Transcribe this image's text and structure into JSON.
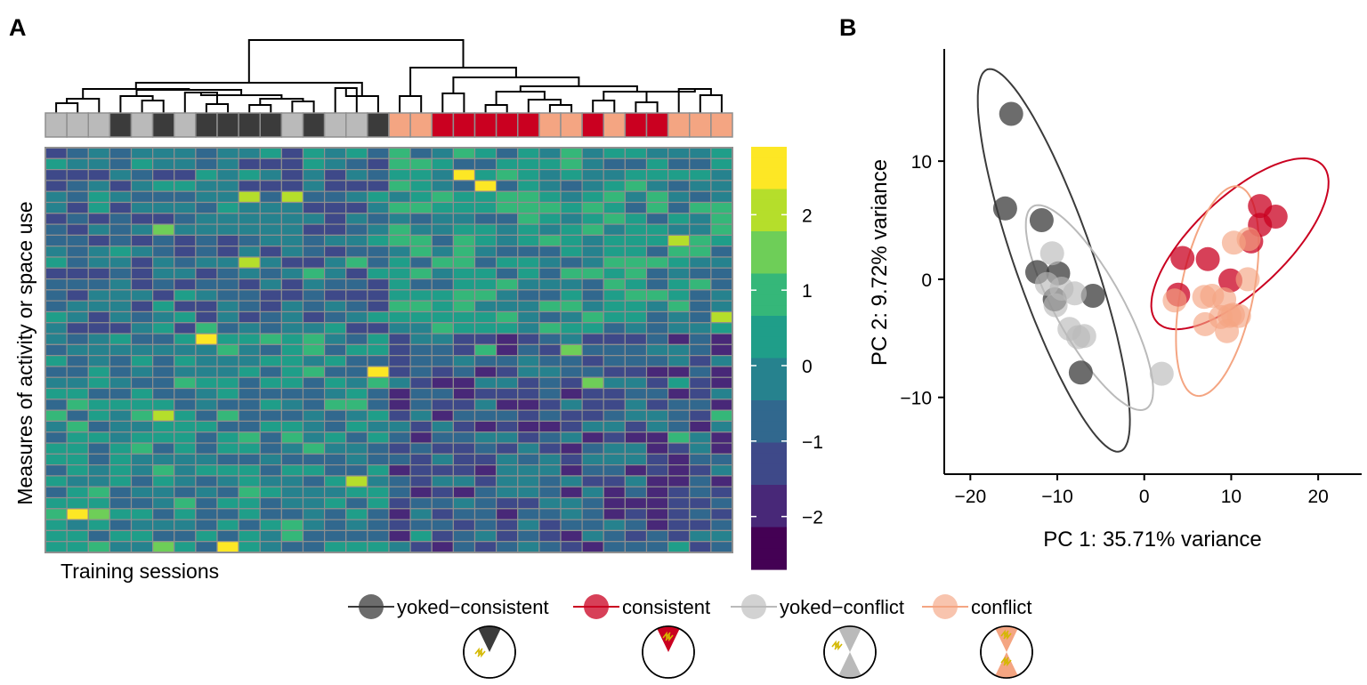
{
  "panels": {
    "a": "A",
    "b": "B"
  },
  "colors": {
    "yoked-consistent": "#3b3b3b",
    "consistent": "#ca0020",
    "yoked-conflict": "#bababa",
    "conflict": "#f4a582",
    "grid_stroke": "#8f8f8f",
    "viridis": [
      "#440154",
      "#482878",
      "#3e4989",
      "#31688e",
      "#26828e",
      "#1f9e89",
      "#35b779",
      "#6ece58",
      "#b5de2b",
      "#fde725"
    ]
  },
  "chart_data": [
    {
      "type": "heatmap",
      "panel": "A",
      "ylabel": "Measures of activity or space use",
      "xlabel": "Training sessions",
      "colorbar_ticks": [
        2,
        1,
        0,
        -1,
        -2
      ],
      "colorbar_tick_labels": [
        "2",
        "1",
        "0",
        "−1",
        "−2"
      ],
      "colorbar_range": [
        -2.7,
        2.9
      ],
      "columns": [
        "yoked-conflict",
        "yoked-conflict",
        "yoked-conflict",
        "yoked-consistent",
        "yoked-conflict",
        "yoked-consistent",
        "yoked-conflict",
        "yoked-consistent",
        "yoked-consistent",
        "yoked-consistent",
        "yoked-consistent",
        "yoked-conflict",
        "yoked-consistent",
        "yoked-conflict",
        "yoked-conflict",
        "yoked-consistent",
        "conflict",
        "conflict",
        "consistent",
        "consistent",
        "consistent",
        "consistent",
        "consistent",
        "conflict",
        "conflict",
        "consistent",
        "conflict",
        "consistent",
        "consistent",
        "conflict",
        "conflict",
        "conflict"
      ],
      "rows": 37,
      "values_note": "",
      "dendrogram": "hierarchical clustering of 32 sessions"
    },
    {
      "type": "scatter",
      "panel": "B",
      "xlabel": "PC 1: 35.71% variance",
      "ylabel": "PC 2: 9.72% variance",
      "xlim": [
        -23,
        25
      ],
      "ylim": [
        -16.5,
        19.5
      ],
      "xticks": [
        -20,
        -10,
        0,
        10,
        20
      ],
      "xtick_labels": [
        "−20",
        "−10",
        "0",
        "10",
        "20"
      ],
      "yticks": [
        10,
        0,
        -10
      ],
      "ytick_labels": [
        "10",
        "0",
        "−10"
      ],
      "series": [
        {
          "name": "yoked−consistent",
          "key": "yoked-consistent",
          "points": [
            [
              -15.3,
              14.0
            ],
            [
              -16.0,
              6.0
            ],
            [
              -11.8,
              5.0
            ],
            [
              -12.3,
              0.6
            ],
            [
              -9.9,
              0.5
            ],
            [
              -10.3,
              -1.7
            ],
            [
              -5.9,
              -1.4
            ],
            [
              -7.3,
              -7.9
            ]
          ]
        },
        {
          "name": "consistent",
          "key": "consistent",
          "points": [
            [
              13.3,
              6.2
            ],
            [
              15.1,
              5.3
            ],
            [
              12.3,
              3.2
            ],
            [
              13.3,
              4.6
            ],
            [
              4.4,
              1.8
            ],
            [
              7.3,
              1.7
            ],
            [
              9.9,
              -0.1
            ],
            [
              3.9,
              -1.3
            ]
          ]
        },
        {
          "name": "yoked−conflict",
          "key": "yoked-conflict",
          "points": [
            [
              -10.6,
              2.2
            ],
            [
              -11.2,
              -0.4
            ],
            [
              -9.5,
              -0.8
            ],
            [
              -8.0,
              -1.2
            ],
            [
              -10.2,
              -2.2
            ],
            [
              -8.6,
              -4.2
            ],
            [
              -7.6,
              -4.9
            ],
            [
              -6.9,
              -4.8
            ],
            [
              2.0,
              -8.0
            ]
          ]
        },
        {
          "name": "conflict",
          "key": "conflict",
          "points": [
            [
              10.3,
              3.1
            ],
            [
              12.0,
              3.4
            ],
            [
              11.9,
              0.0
            ],
            [
              7.8,
              -1.4
            ],
            [
              9.2,
              -1.7
            ],
            [
              3.5,
              -1.8
            ],
            [
              6.9,
              -1.5
            ],
            [
              8.8,
              -3.2
            ],
            [
              9.8,
              -3.1
            ],
            [
              10.2,
              -3.0
            ],
            [
              10.9,
              -3.1
            ],
            [
              9.5,
              -4.4
            ],
            [
              7.0,
              -3.8
            ]
          ]
        }
      ],
      "ellipses": [
        {
          "key": "yoked-consistent",
          "cx": -10.4,
          "cy": 1.6,
          "rx": 17.9,
          "ry": 4.3,
          "angle_deg": -64
        },
        {
          "key": "yoked-conflict",
          "cx": -6.3,
          "cy": -2.4,
          "rx": 10.8,
          "ry": 3.5,
          "angle_deg": -51
        },
        {
          "key": "consistent",
          "cx": 11.0,
          "cy": 3.0,
          "rx": 11.7,
          "ry": 4.4,
          "angle_deg": 32
        },
        {
          "key": "conflict",
          "cx": 8.4,
          "cy": -1.0,
          "rx": 9.2,
          "ry": 4.1,
          "angle_deg": 73
        }
      ]
    }
  ],
  "legend": {
    "items": [
      {
        "key": "yoked-consistent",
        "label": "yoked−consistent"
      },
      {
        "key": "consistent",
        "label": "consistent"
      },
      {
        "key": "yoked-conflict",
        "label": "yoked−conflict"
      },
      {
        "key": "conflict",
        "label": "conflict"
      }
    ],
    "arena_icons": [
      "yoked-consistent-arena-icon",
      "consistent-arena-icon",
      "yoked-conflict-arena-icon",
      "conflict-arena-icon"
    ]
  }
}
